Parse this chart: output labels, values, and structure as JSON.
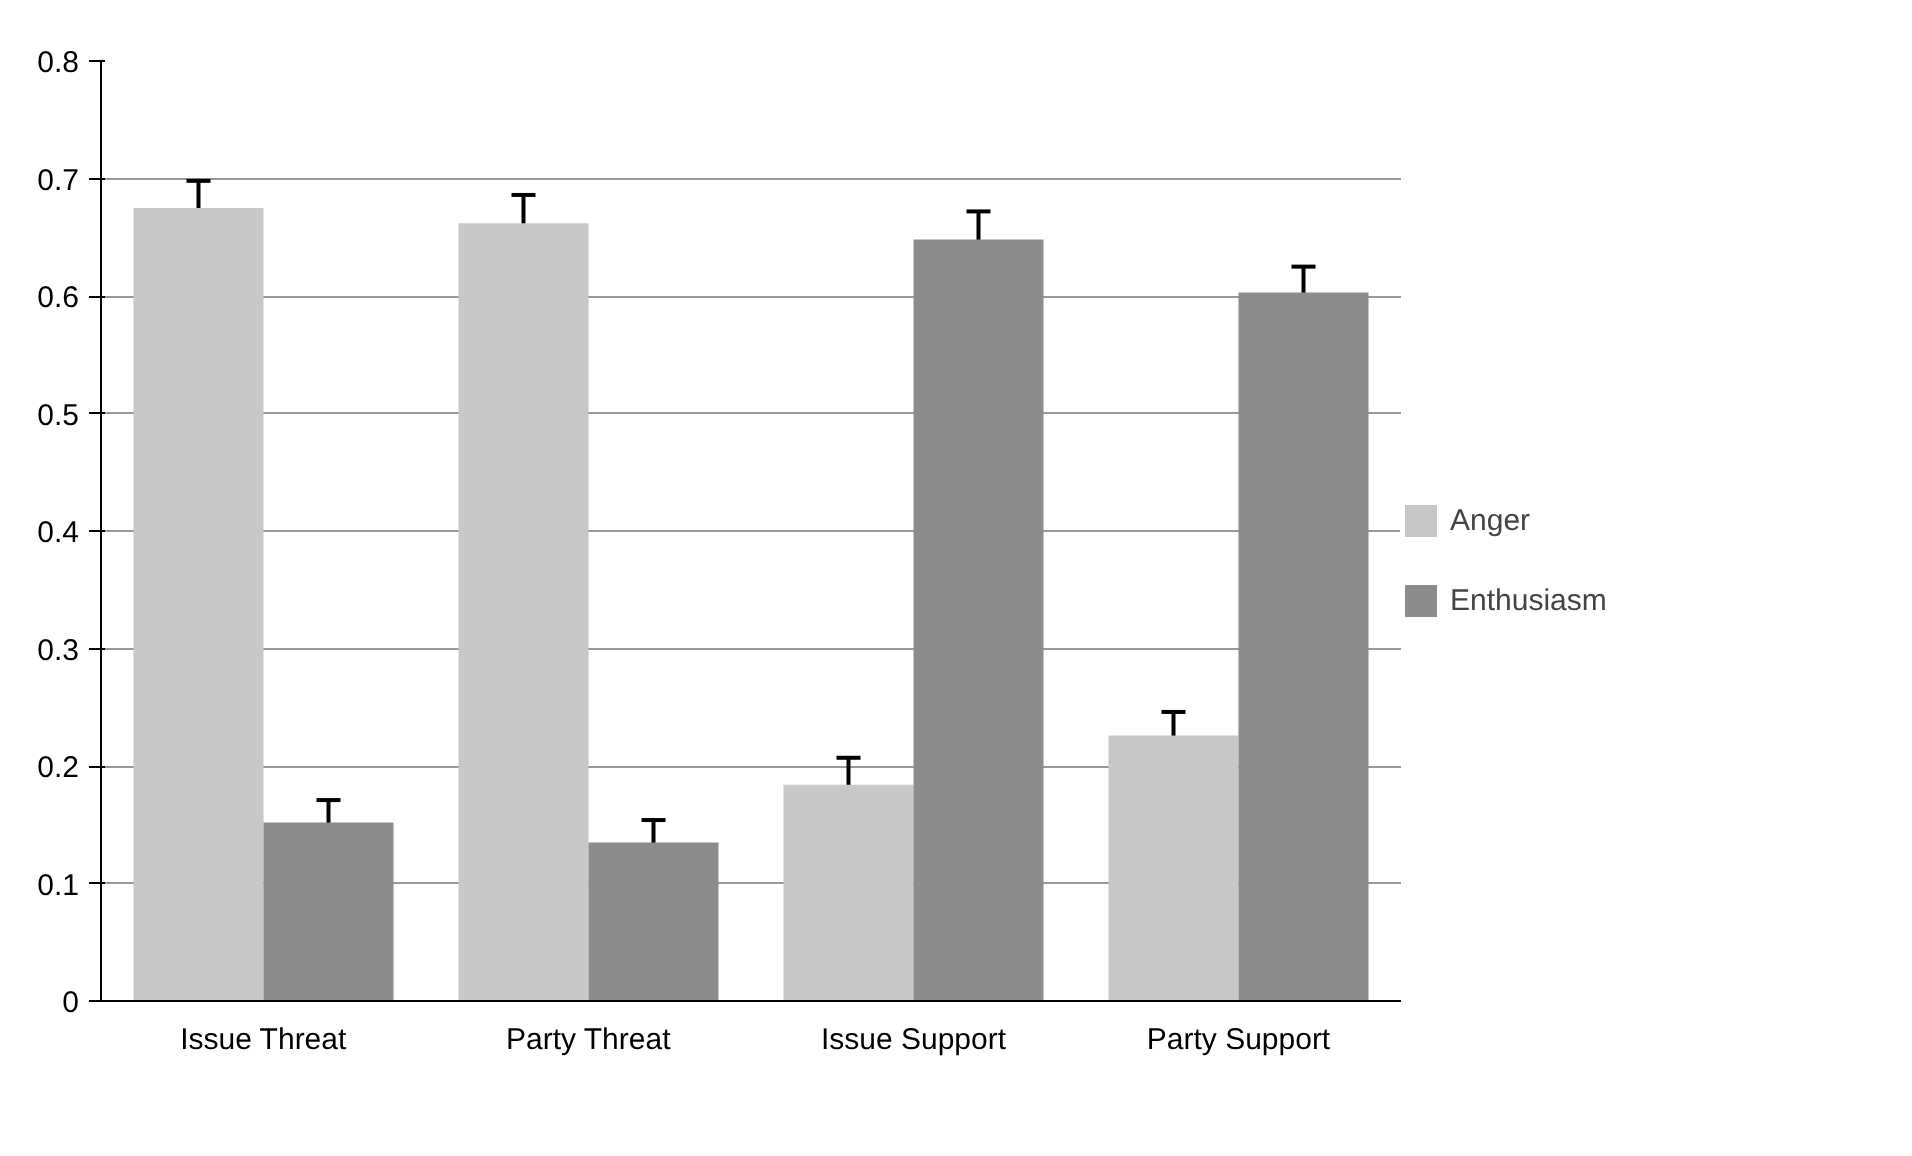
{
  "chart_data": {
    "type": "bar",
    "categories": [
      "Issue Threat",
      "Party Threat",
      "Issue Support",
      "Party Support"
    ],
    "series": [
      {
        "name": "Anger",
        "color": "#c8c8c8",
        "values": [
          0.675,
          0.662,
          0.184,
          0.226
        ],
        "errors": [
          0.023,
          0.024,
          0.023,
          0.02
        ]
      },
      {
        "name": "Enthusiasm",
        "color": "#8c8c8c",
        "values": [
          0.152,
          0.135,
          0.648,
          0.603
        ],
        "errors": [
          0.019,
          0.019,
          0.024,
          0.022
        ]
      }
    ],
    "ylim": [
      0,
      0.8
    ],
    "yticks": [
      {
        "value": 0,
        "label": "0"
      },
      0.1,
      0.2,
      0.3,
      0.4,
      0.5,
      0.6,
      0.7,
      0.8
    ],
    "grid": "y",
    "legend": "right"
  }
}
